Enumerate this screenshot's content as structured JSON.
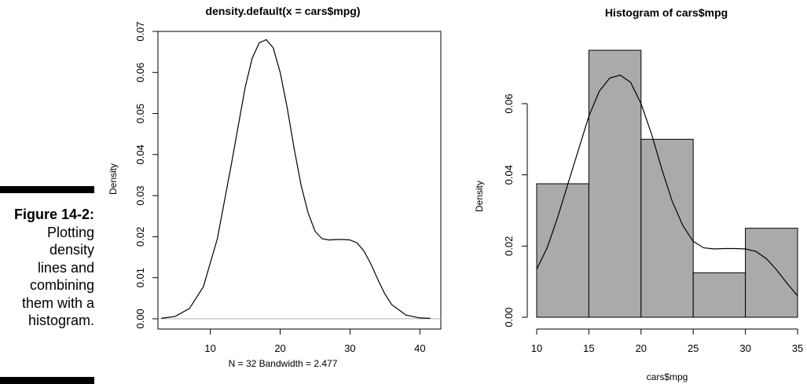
{
  "caption": {
    "label": "Figure 14-2:",
    "lines": [
      "Plotting",
      "density",
      "lines and",
      "combining",
      "them with a",
      "histogram."
    ]
  },
  "chart_data": [
    {
      "type": "line",
      "title": "density.default(x = cars$mpg)",
      "xlabel": "N = 32   Bandwidth = 2.477",
      "ylabel": "Density",
      "xlim": [
        2.5,
        43
      ],
      "ylim": [
        -0.0025,
        0.07
      ],
      "xticks": [
        10,
        20,
        30,
        40
      ],
      "yticks": [
        0.0,
        0.01,
        0.02,
        0.03,
        0.04,
        0.05,
        0.06,
        0.07
      ],
      "ytick_labels": [
        "0.00",
        "0.01",
        "0.02",
        "0.03",
        "0.04",
        "0.05",
        "0.06",
        "0.07"
      ],
      "baseline": 0,
      "baseline_color": "#b3b3b3",
      "box": true,
      "grid": false,
      "series": [
        {
          "x": [
            3,
            5,
            7,
            9,
            11,
            13,
            15,
            16,
            17,
            18,
            19,
            20,
            21,
            22,
            23,
            24,
            25,
            26,
            27,
            28,
            29,
            30,
            31,
            32,
            33,
            34,
            35,
            36,
            38,
            40,
            41.5
          ],
          "y": [
            0.0001,
            0.0006,
            0.0025,
            0.0078,
            0.0195,
            0.0375,
            0.0565,
            0.0635,
            0.0672,
            0.068,
            0.066,
            0.06,
            0.0515,
            0.0415,
            0.0325,
            0.0258,
            0.0213,
            0.0195,
            0.0192,
            0.0193,
            0.0193,
            0.0192,
            0.0185,
            0.0165,
            0.0133,
            0.0095,
            0.006,
            0.0034,
            0.0009,
            0.0002,
            0.0001
          ]
        }
      ]
    },
    {
      "type": "bar",
      "title": "Histogram of cars$mpg",
      "xlabel": "cars$mpg",
      "ylabel": "Density",
      "xlim": [
        10,
        35
      ],
      "ylim": [
        0,
        0.075
      ],
      "xticks": [
        10,
        15,
        20,
        25,
        30,
        35
      ],
      "yticks": [
        0.0,
        0.02,
        0.04,
        0.06
      ],
      "ytick_labels": [
        "0.00",
        "0.02",
        "0.04",
        "0.06"
      ],
      "bar_color": "#aaaaaa",
      "box": false,
      "grid": false,
      "bins": [
        [
          10,
          15
        ],
        [
          15,
          20
        ],
        [
          20,
          25
        ],
        [
          25,
          30
        ],
        [
          30,
          35
        ]
      ],
      "values": [
        0.0375,
        0.075,
        0.05,
        0.0125,
        0.025
      ],
      "overlay": {
        "type": "line",
        "x": [
          10,
          11,
          12,
          13,
          14,
          15,
          16,
          17,
          18,
          19,
          20,
          21,
          22,
          23,
          24,
          25,
          26,
          27,
          28,
          29,
          30,
          31,
          32,
          33,
          34,
          35
        ],
        "y": [
          0.0135,
          0.0195,
          0.028,
          0.0375,
          0.047,
          0.0565,
          0.0635,
          0.0672,
          0.068,
          0.066,
          0.06,
          0.0515,
          0.0415,
          0.0325,
          0.0258,
          0.0213,
          0.0195,
          0.0192,
          0.0193,
          0.0193,
          0.0192,
          0.0185,
          0.0165,
          0.0133,
          0.0095,
          0.006
        ]
      }
    }
  ]
}
